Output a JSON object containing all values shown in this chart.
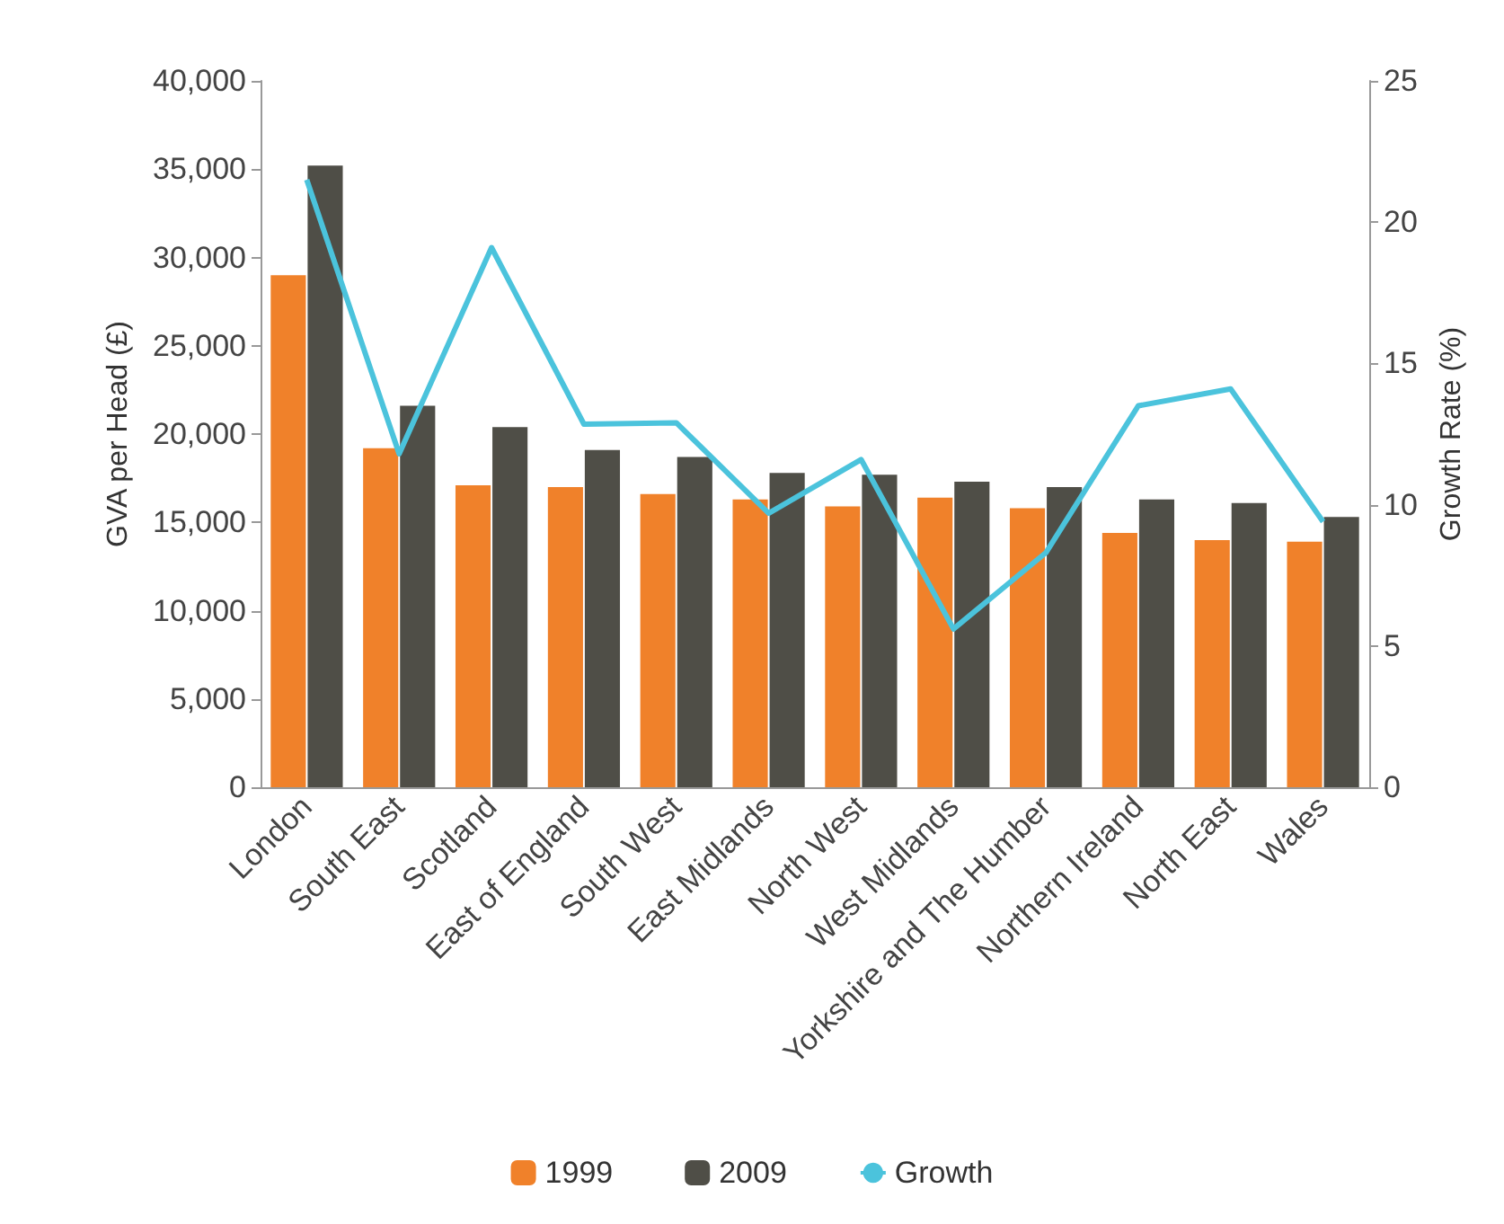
{
  "chart_data": {
    "type": "bar",
    "ylabel": "GVA per Head (£)",
    "y2label": "Growth Rate (%)",
    "categories": [
      "London",
      "South East",
      "Scotland",
      "East of England",
      "South West",
      "East Midlands",
      "North West",
      "West Midlands",
      "Yorkshire and The Humber",
      "Northern Ireland",
      "North East",
      "Wales"
    ],
    "series": [
      {
        "name": "1999",
        "color": "#f0812a",
        "values": [
          29000,
          19200,
          17100,
          17000,
          16600,
          16300,
          15900,
          16400,
          15800,
          14400,
          14000,
          13900
        ]
      },
      {
        "name": "2009",
        "color": "#4f4e47",
        "values": [
          35200,
          21600,
          20400,
          19100,
          18700,
          17800,
          17700,
          17300,
          17000,
          16300,
          16100,
          15300
        ]
      },
      {
        "name": "Growth",
        "type": "line",
        "axis": "y2",
        "color": "#4bc3dc",
        "values": [
          21.5,
          11.8,
          19.1,
          12.85,
          12.9,
          9.7,
          11.6,
          5.6,
          8.3,
          13.5,
          14.1,
          9.4
        ]
      }
    ],
    "ylim": [
      0,
      40000
    ],
    "yticks": [
      {
        "value": 0,
        "label": "0"
      },
      {
        "value": 5000,
        "label": "5,000"
      },
      {
        "value": 10000,
        "label": "10,000"
      },
      {
        "value": 15000,
        "label": "15,000"
      },
      {
        "value": 20000,
        "label": "20,000"
      },
      {
        "value": 25000,
        "label": "25,000"
      },
      {
        "value": 30000,
        "label": "30,000"
      },
      {
        "value": 35000,
        "label": "35,000"
      },
      {
        "value": 40000,
        "label": "40,000"
      }
    ],
    "y2lim": [
      0,
      25
    ],
    "y2ticks": [
      0,
      5,
      10,
      15,
      20,
      25
    ],
    "grid": false,
    "legend": "bottom",
    "marker": "none"
  }
}
